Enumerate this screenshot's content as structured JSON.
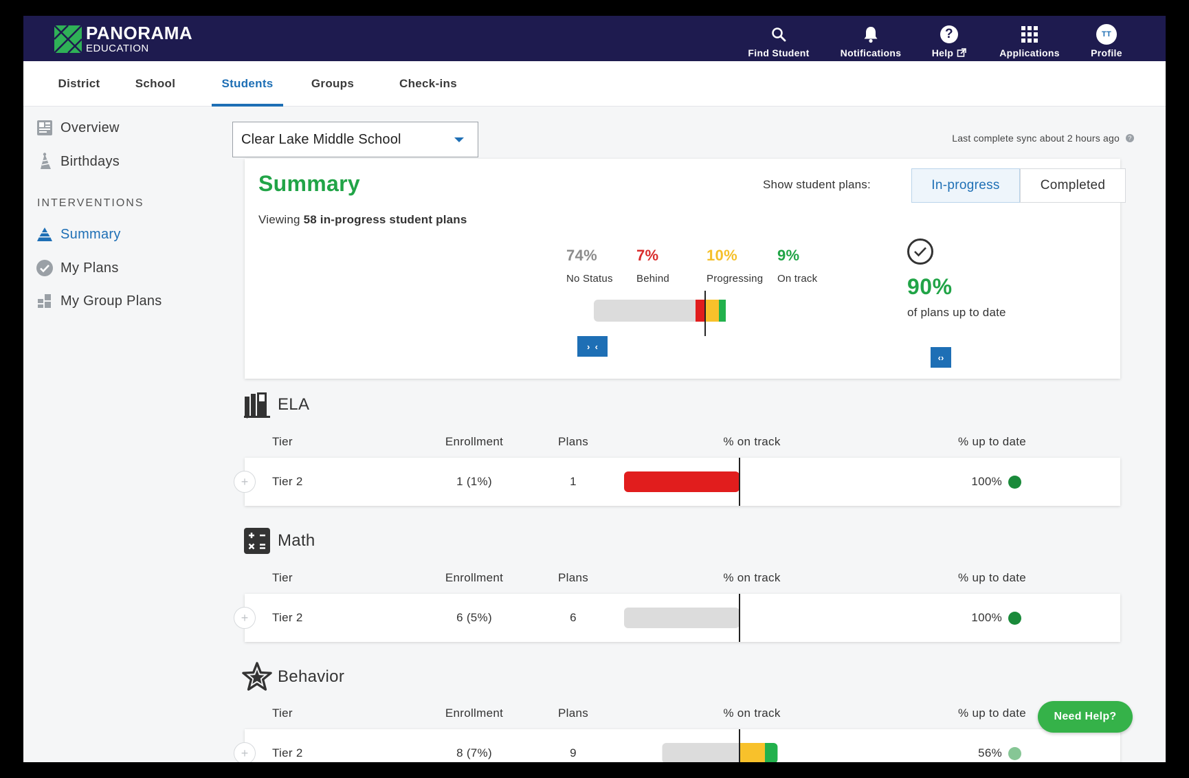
{
  "brand": {
    "name": "PANORAMA",
    "sub": "EDUCATION",
    "green": "#2fb157",
    "navy": "#1e1b4f",
    "accent": "#1e6fb5"
  },
  "nav": {
    "find_student": "Find Student",
    "notifications": "Notifications",
    "help": "Help",
    "applications": "Applications",
    "profile": "Profile",
    "avatar_initials": "TT"
  },
  "tabs": [
    "District",
    "School",
    "Students",
    "Groups",
    "Check-ins"
  ],
  "active_tab": "Students",
  "sidebar": {
    "overview": "Overview",
    "birthdays": "Birthdays",
    "heading": "INTERVENTIONS",
    "summary": "Summary",
    "my_plans": "My Plans",
    "my_group_plans": "My Group Plans"
  },
  "school_select": {
    "value": "Clear Lake Middle School"
  },
  "sync_text": "Last complete sync about 2 hours ago",
  "summary": {
    "title": "Summary",
    "viewing_prefix": "Viewing ",
    "viewing_bold": "58 in-progress student plans",
    "show_label": "Show student plans:",
    "toggle_inprogress": "In-progress",
    "toggle_completed": "Completed",
    "stats": [
      {
        "pct": "74%",
        "label": "No Status",
        "color": "#8c8c8c"
      },
      {
        "pct": "7%",
        "label": "Behind",
        "color": "#d92c2c"
      },
      {
        "pct": "10%",
        "label": "Progressing",
        "color": "#f5c02a"
      },
      {
        "pct": "9%",
        "label": "On track",
        "color": "#21a447"
      }
    ],
    "up_to_date_pct": "90%",
    "up_to_date_label": "of plans up to date",
    "bar": {
      "no_status": 74,
      "behind": 7,
      "progressing": 10,
      "on_track": 9
    }
  },
  "columns": {
    "tier": "Tier",
    "enrollment": "Enrollment",
    "plans": "Plans",
    "on_track": "% on track",
    "up_to_date": "% up to date"
  },
  "sections": [
    {
      "title": "ELA",
      "tier": "Tier 2",
      "enrollment": "1 (1%)",
      "plans": "1",
      "up_to_date": "100%",
      "dot": "#1a8a3a",
      "bar": {
        "no_status": 0,
        "behind": 100,
        "progressing": 0,
        "on_track": 0
      }
    },
    {
      "title": "Math",
      "tier": "Tier 2",
      "enrollment": "6 (5%)",
      "plans": "6",
      "up_to_date": "100%",
      "dot": "#1a8a3a",
      "bar": {
        "no_status": 100,
        "behind": 0,
        "progressing": 0,
        "on_track": 0
      }
    },
    {
      "title": "Behavior",
      "tier": "Tier 2",
      "enrollment": "8 (7%)",
      "plans": "9",
      "up_to_date": "56%",
      "dot": "#86c695",
      "bar": {
        "no_status": 67,
        "behind": 0,
        "progressing": 22,
        "on_track": 11
      }
    }
  ],
  "need_help": "Need Help?"
}
